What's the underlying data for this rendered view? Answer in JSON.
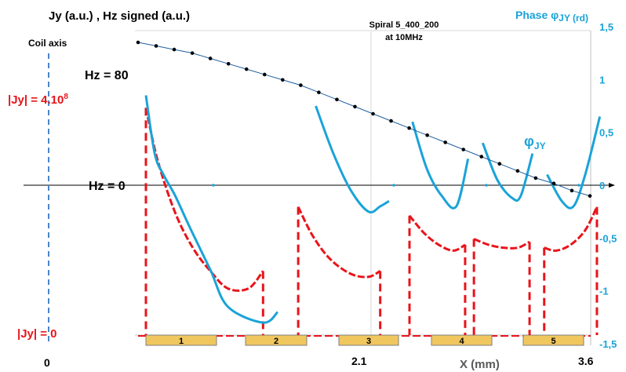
{
  "chart_data": {
    "type": "line",
    "title": "Jy (a.u.) , Hz signed (a.u.)",
    "subtitle_line1": "Spiral 5_400_200",
    "subtitle_line2": "at 10MHz",
    "xlabel": "X (mm)",
    "x_ticks": [
      "0",
      "2.1",
      "3.6"
    ],
    "y2_title": "Phase φ",
    "y2_title_sub": "JY (rd)",
    "y2_ticks": [
      "1,5",
      "1",
      "0,5",
      "0",
      "-0,5",
      "-1",
      "-1,5"
    ],
    "y2lim": [
      -1.5,
      1.5
    ],
    "xlim": [
      0,
      3.6
    ],
    "annotations": {
      "coil_axis": "Coil axis",
      "hz_80": "Hz = 80",
      "jy_max": "|Jy| = 4.10",
      "jy_max_exp": "8",
      "hz_0": "Hz = 0",
      "jy_zero": "|Jy| = 0",
      "phi_label": "φ",
      "phi_label_sub": "JY"
    },
    "turns": [
      "1",
      "2",
      "3",
      "4",
      "5"
    ],
    "colors": {
      "jy": "#e8141a",
      "phase": "#1aa3d8",
      "hz": "#000000",
      "hz_fit": "#1f5f9e",
      "coil_axis": "#4a86c8",
      "turn_fill": "#f0c75e",
      "turn_border": "#7f7f7f"
    },
    "series": [
      {
        "key": "hz",
        "x": [
          2.1,
          2.16,
          2.22,
          2.28,
          2.34,
          2.4,
          2.46,
          2.52,
          2.58,
          2.64,
          2.7,
          2.76,
          2.82,
          2.88,
          2.94,
          3.0,
          3.06,
          3.12,
          3.18,
          3.24,
          3.3,
          3.36,
          3.42,
          3.48,
          3.54,
          3.6
        ],
        "y": [
          80,
          78,
          76,
          74,
          71,
          68,
          65,
          62,
          59,
          56,
          52,
          48,
          44,
          40,
          36,
          32,
          28,
          24,
          20,
          16,
          12,
          8,
          4,
          1,
          -3,
          -6
        ]
      },
      {
        "key": "phase",
        "segments": [
          {
            "x": [
              2.1,
              2.13,
              2.16,
              2.2,
              2.25,
              2.32,
              2.38,
              2.5,
              2.55
            ],
            "y": [
              0.85,
              0.3,
              0.1,
              -0.1,
              -0.4,
              -0.8,
              -1.15,
              -1.3,
              -1.2
            ]
          },
          {
            "x": [
              2.68,
              2.74,
              2.8,
              2.86,
              2.9,
              2.93
            ],
            "y": [
              0.75,
              0.3,
              -0.05,
              -0.25,
              -0.2,
              -0.15
            ]
          },
          {
            "x": [
              3.01,
              3.06,
              3.11,
              3.16,
              3.2
            ],
            "y": [
              0.6,
              0.15,
              -0.1,
              -0.2,
              0.25
            ]
          },
          {
            "x": [
              3.25,
              3.3,
              3.35,
              3.38,
              3.42
            ],
            "y": [
              0.4,
              0.05,
              -0.12,
              -0.1,
              0.3
            ]
          },
          {
            "x": [
              3.47,
              3.52,
              3.56,
              3.6,
              3.65
            ],
            "y": [
              0.1,
              -0.15,
              -0.2,
              0.1,
              0.65
            ]
          }
        ]
      },
      {
        "key": "jy",
        "segments": [
          {
            "x": [
              2.1,
              2.14,
              2.2,
              2.26,
              2.32,
              2.38,
              2.45,
              2.5
            ],
            "y": [
              3.9,
              3.0,
              2.1,
              1.5,
              1.1,
              0.8,
              0.8,
              1.1
            ]
          },
          {
            "x": [
              2.62,
              2.67,
              2.73,
              2.8,
              2.86,
              2.9
            ],
            "y": [
              2.2,
              1.7,
              1.3,
              1.05,
              1.0,
              1.1
            ]
          },
          {
            "x": [
              3.0,
              3.05,
              3.1,
              3.15,
              3.19
            ],
            "y": [
              2.05,
              1.75,
              1.55,
              1.45,
              1.55
            ]
          },
          {
            "x": [
              3.22,
              3.27,
              3.32,
              3.37,
              3.41
            ],
            "y": [
              1.65,
              1.55,
              1.5,
              1.5,
              1.6
            ]
          },
          {
            "x": [
              3.46,
              3.5,
              3.55,
              3.6,
              3.64
            ],
            "y": [
              1.5,
              1.45,
              1.55,
              1.8,
              2.2
            ]
          }
        ]
      }
    ],
    "grid": false
  }
}
